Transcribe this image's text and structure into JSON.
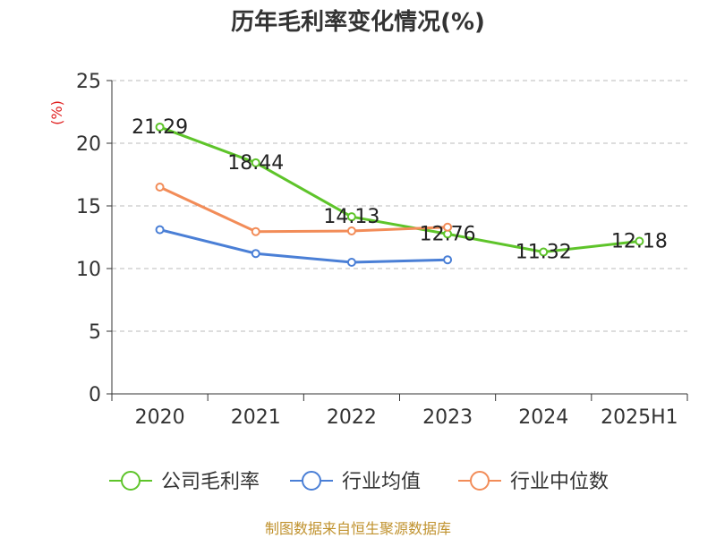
{
  "title": "历年毛利率变化情况(%)",
  "footer": "制图数据来自恒生聚源数据库",
  "chart_data": {
    "type": "line",
    "title": "历年毛利率变化情况(%)",
    "ylabel": "(%)",
    "ylim": [
      0,
      25
    ],
    "yticks": [
      "0",
      "5",
      "10",
      "15",
      "20",
      "25"
    ],
    "categories": [
      "2020",
      "2021",
      "2022",
      "2023",
      "2024",
      "2025H1"
    ],
    "grid": true,
    "legend_position": "bottom",
    "series": [
      {
        "name": "公司毛利率",
        "color": "#5ec42a",
        "values": [
          21.29,
          18.44,
          14.13,
          12.76,
          11.32,
          12.18
        ],
        "labels": [
          "21.29",
          "18.44",
          "14.13",
          "12.76",
          "11.32",
          "12.18"
        ]
      },
      {
        "name": "行业均值",
        "color": "#4a7fd6",
        "values": [
          13.1,
          11.2,
          10.5,
          10.7,
          null,
          null
        ]
      },
      {
        "name": "行业中位数",
        "color": "#f28c58",
        "values": [
          16.5,
          12.95,
          13.0,
          13.3,
          null,
          null
        ]
      }
    ]
  }
}
